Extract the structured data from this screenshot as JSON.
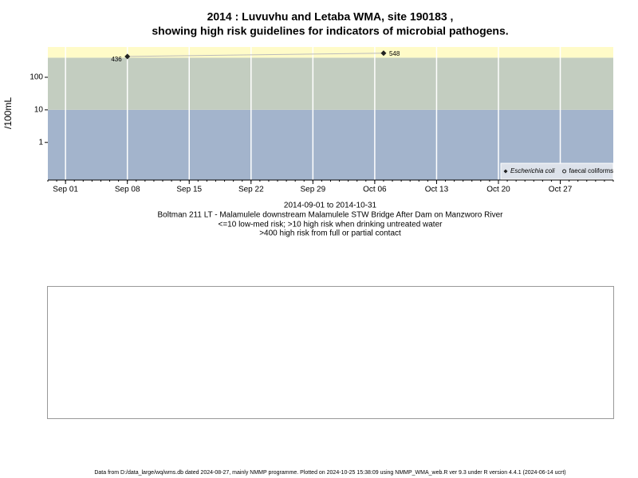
{
  "chart_data": {
    "type": "line",
    "title": "2014 : Luvuvhu and Letaba WMA, site 190183 ,",
    "subtitle": "showing high risk guidelines for indicators of microbial pathogens.",
    "y_label": "/100mL",
    "x_label": "2014-09-01 to 2014-10-31",
    "notes": [
      "Boltman 211 LT - Malamulele downstream Malamulele STW Bridge After Dam on Manzworo River",
      "<=10 low-med risk; >10 high risk when drinking untreated water",
      ">400 high risk from full or partial contact"
    ],
    "footer": "Data from D:/data_large/wq/wms.db dated 2024-08-27, mainly NMMP programme. Plotted on 2024-10-25 15:38:09 using NMMP_WMA_web.R ver 9.3 under R version 4.4.1 (2024-06-14 ucrt)",
    "log_y": true,
    "ylim": [
      0.07,
      850
    ],
    "yticks": [
      1,
      10,
      100
    ],
    "xlim": [
      "Aug 30",
      "Nov 02"
    ],
    "xticks": [
      "Sep 01",
      "Sep 08",
      "Sep 15",
      "Sep 22",
      "Sep 29",
      "Oct 06",
      "Oct 13",
      "Oct 20",
      "Oct 27"
    ],
    "thresholds": [
      10,
      400
    ],
    "band_colors": [
      "#a3b4cc",
      "#c3cdc0",
      "#fffbc8"
    ],
    "grid": true,
    "legend": "bottom right",
    "series": [
      {
        "name": "Escherichia coli",
        "color": "#222222",
        "marker": "diamond",
        "x": [
          "Sep 08",
          "Oct 07"
        ],
        "values": [
          436,
          548
        ]
      },
      {
        "name": "faecal coliforms",
        "color": "#222222",
        "marker": "circle",
        "x": [],
        "values": []
      }
    ]
  }
}
